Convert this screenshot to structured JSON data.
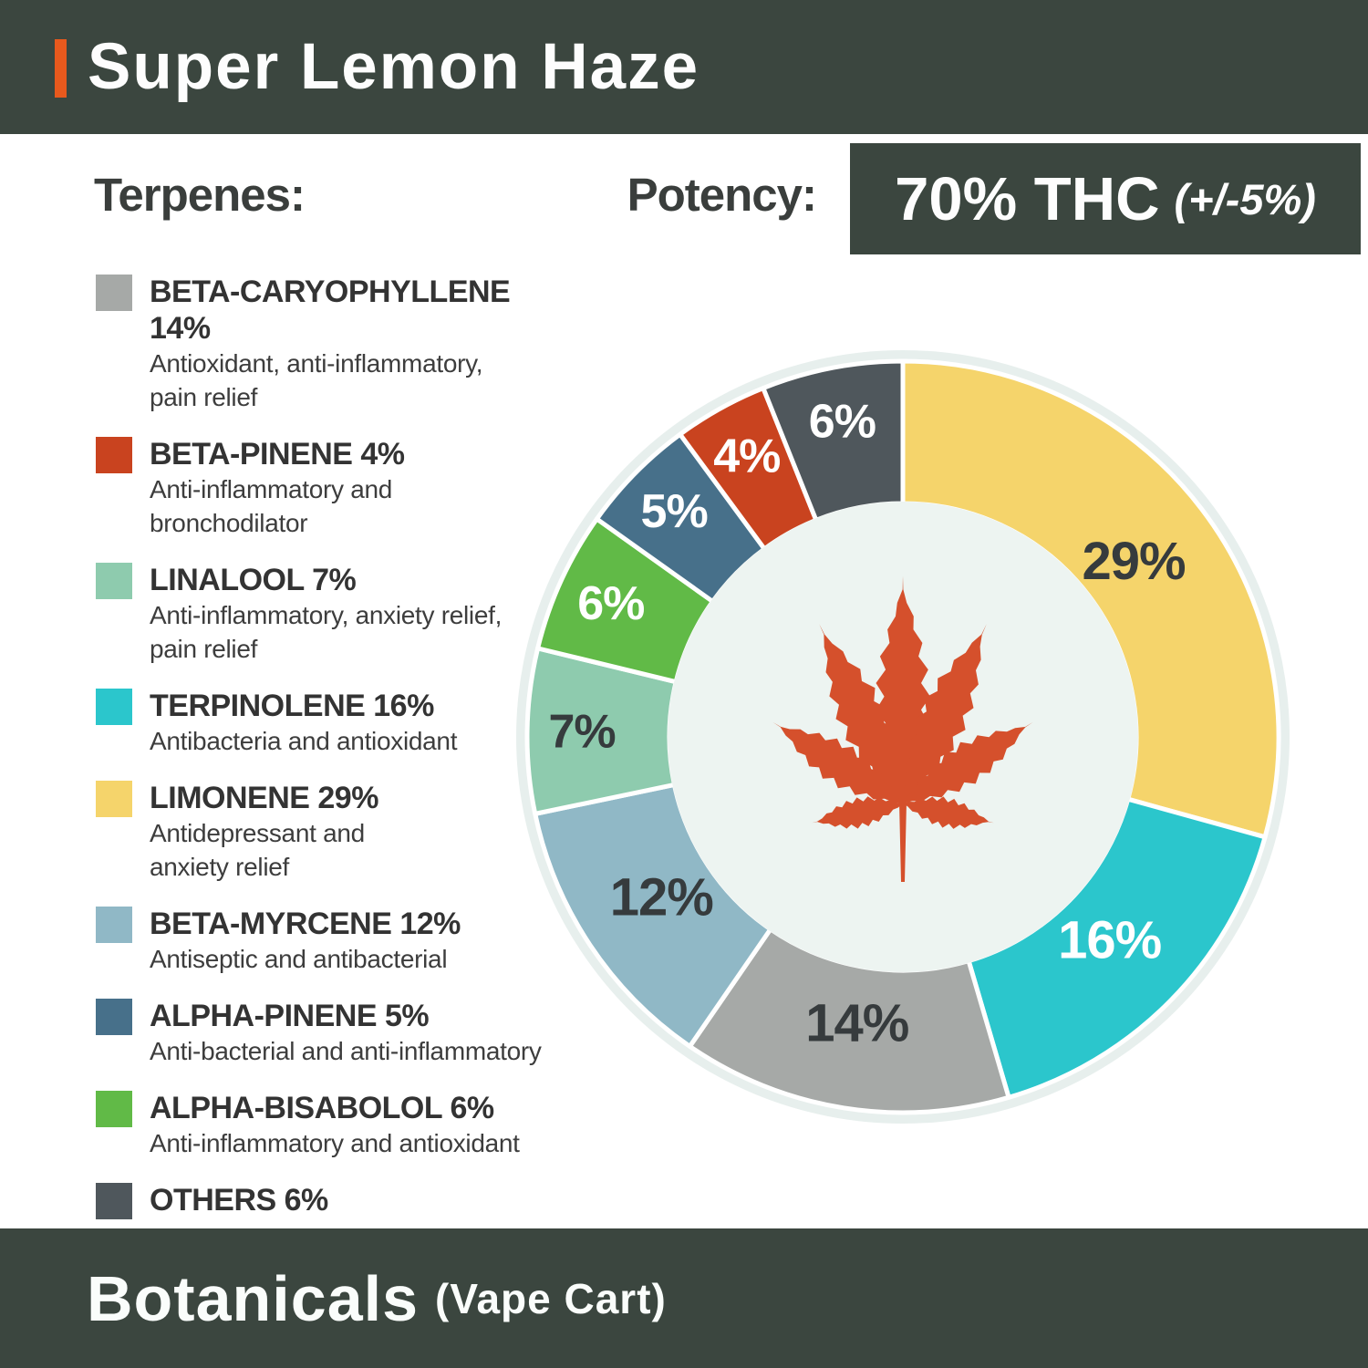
{
  "header": {
    "title": "Super Lemon Haze"
  },
  "terpenes_heading": "Terpenes:",
  "potency": {
    "label": "Potency:",
    "value": "70% THC",
    "tolerance": "(+/-5%)"
  },
  "legend": [
    {
      "name": "BETA-CARYOPHYLLENE",
      "pct": "14%",
      "color": "#a6a9a7",
      "desc": "Antioxidant, anti-inflammatory,\npain relief"
    },
    {
      "name": "BETA-PINENE",
      "pct": "4%",
      "color": "#c9431f",
      "desc": "Anti-inflammatory and\nbronchodilator"
    },
    {
      "name": "LINALOOL",
      "pct": "7%",
      "color": "#8ecbae",
      "desc": "Anti-inflammatory, anxiety relief,\npain relief"
    },
    {
      "name": "TERPINOLENE",
      "pct": "16%",
      "color": "#2bc6cc",
      "desc": "Antibacteria and antioxidant"
    },
    {
      "name": "LIMONENE",
      "pct": "29%",
      "color": "#f5d46b",
      "desc": "Antidepressant and\nanxiety relief"
    },
    {
      "name": "BETA-MYRCENE",
      "pct": "12%",
      "color": "#90b8c6",
      "desc": "Antiseptic and antibacterial"
    },
    {
      "name": "ALPHA-PINENE",
      "pct": "5%",
      "color": "#47708a",
      "desc": "Anti-bacterial and anti-inflammatory"
    },
    {
      "name": "ALPHA-BISABOLOL",
      "pct": "6%",
      "color": "#61ba47",
      "desc": "Anti-inflammatory and antioxidant"
    },
    {
      "name": "OTHERS",
      "pct": "6%",
      "color": "#4f575c",
      "desc": ""
    }
  ],
  "chart_data": {
    "type": "pie",
    "subtype": "donut",
    "title": "Terpene composition (clockwise from top)",
    "categories": [
      "LIMONENE",
      "TERPINOLENE",
      "BETA-CARYOPHYLLENE",
      "BETA-MYRCENE",
      "LINALOOL",
      "ALPHA-BISABOLOL",
      "ALPHA-PINENE",
      "BETA-PINENE",
      "OTHERS"
    ],
    "values": [
      29,
      16,
      14,
      12,
      7,
      6,
      5,
      4,
      6
    ],
    "labels": [
      "29%",
      "16%",
      "14%",
      "12%",
      "7%",
      "6%",
      "5%",
      "4%",
      "6%"
    ],
    "colors": [
      "#f5d46b",
      "#2bc6cc",
      "#a6a9a7",
      "#90b8c6",
      "#8ecbae",
      "#61ba47",
      "#47708a",
      "#c9431f",
      "#4f575c"
    ],
    "label_colors": [
      "#363b3d",
      "#ffffff",
      "#363b3d",
      "#363b3d",
      "#363b3d",
      "#ffffff",
      "#ffffff",
      "#ffffff",
      "#ffffff"
    ],
    "legend_position": "left",
    "center_icon": "cannabis-leaf"
  },
  "footer": {
    "brand": "Botanicals",
    "product": "(Vape Cart)"
  },
  "colors": {
    "bar_bg": "#3b463f",
    "accent_orange": "#e8591d",
    "halo": "#e7efed",
    "donut_inner": "#edf4f1",
    "leaf": "#d5502c",
    "gap_white": "#ffffff"
  }
}
